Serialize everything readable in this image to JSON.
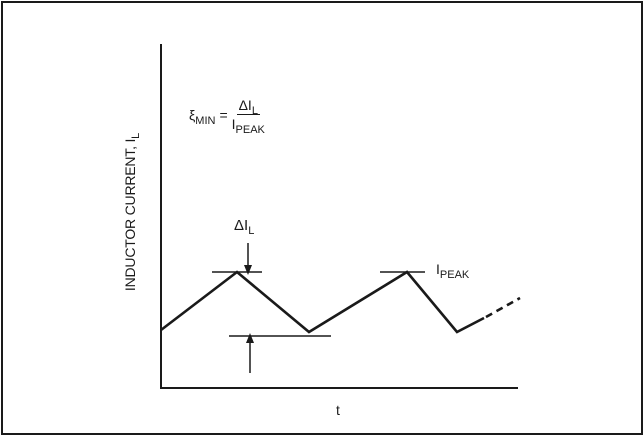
{
  "y_axis_label": "INDUCTOR CURRENT, I",
  "y_axis_label_sub": "L",
  "x_axis_label": "t",
  "formula": {
    "lhs_symbol": "ξ",
    "lhs_sub": "MIN",
    "equals": "=",
    "numerator": "ΔI",
    "numerator_sub": "L",
    "denominator": "I",
    "denominator_sub": "PEAK"
  },
  "delta_label": "ΔI",
  "delta_label_sub": "L",
  "peak_label": "I",
  "peak_label_sub": "PEAK",
  "colors": {
    "ink": "#1a1a1a",
    "background": "#ffffff"
  }
}
